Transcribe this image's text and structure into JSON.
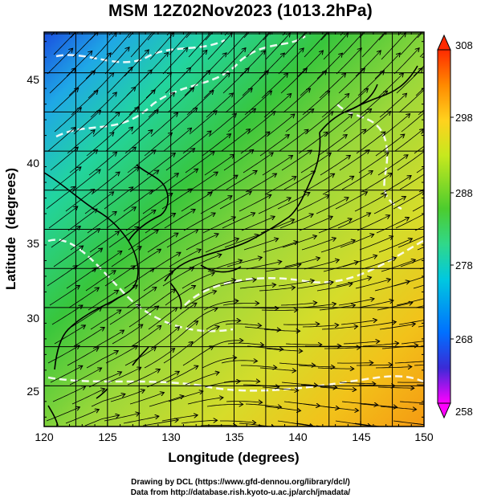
{
  "title": "MSM 12Z02Nov2023 (1013.2hPa)",
  "axes": {
    "xlabel": "Longitude (degrees)",
    "ylabel": "Latitude  (degrees)",
    "xticks": [
      "120",
      "125",
      "130",
      "135",
      "140",
      "145",
      "150"
    ],
    "yticks": [
      "25",
      "30",
      "35",
      "40",
      "45"
    ]
  },
  "map_extent": {
    "lon": [
      120,
      150
    ],
    "lat": [
      22.4,
      47.6
    ]
  },
  "colorbar": {
    "labels": [
      "308",
      "298",
      "288",
      "278",
      "268",
      "258"
    ],
    "range": [
      258,
      308
    ],
    "stops": [
      "#ff00ff",
      "#3a2bd6",
      "#0070ff",
      "#00c8e0",
      "#30d88a",
      "#4ccc2e",
      "#c6e81e",
      "#ffd21e",
      "#ff8a00",
      "#ff2a00"
    ]
  },
  "credits": {
    "line1": "Drawing by DCL (https://www.gfd-dennou.org/library/dcl/)",
    "line2": "Data from http://database.rish.kyoto-u.ac.jp/arch/jmadata/"
  }
}
